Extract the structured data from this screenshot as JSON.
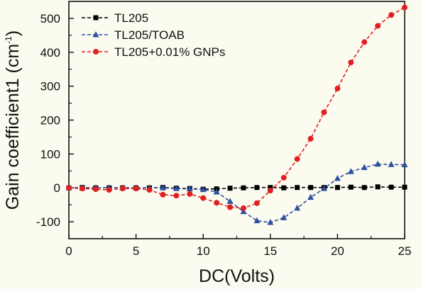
{
  "chart_data": {
    "type": "line",
    "xlabel": "DC(Volts)",
    "ylabel": {
      "main": "Gain coefficient1 (cm",
      "sup": "-1",
      "end": ")"
    },
    "xlim": [
      0,
      25
    ],
    "ylim": [
      -150,
      550
    ],
    "xticks": [
      0,
      5,
      10,
      15,
      20,
      25
    ],
    "yticks": [
      -100,
      0,
      100,
      200,
      300,
      400,
      500
    ],
    "grid": false,
    "legend_position": "top-left",
    "series": [
      {
        "name": "TL205",
        "color": "#000000",
        "marker": "square",
        "x": [
          0,
          1,
          2,
          3,
          4,
          5,
          6,
          7,
          8,
          9,
          10,
          11,
          12,
          13,
          14,
          15,
          16,
          17,
          18,
          19,
          20,
          21,
          22,
          23,
          24,
          25
        ],
        "y": [
          0,
          1,
          0,
          0,
          0,
          0,
          0,
          1,
          -1,
          -2,
          -4,
          -3,
          -1,
          0,
          1,
          1,
          0,
          1,
          1,
          1,
          1,
          2,
          1,
          3,
          2,
          2
        ]
      },
      {
        "name": "TL205/TOAB",
        "color": "#2f4fa0",
        "marker": "triangle",
        "x": [
          0,
          1,
          2,
          3,
          4,
          5,
          6,
          7,
          8,
          9,
          10,
          11,
          12,
          13,
          14,
          15,
          16,
          17,
          18,
          19,
          20,
          21,
          22,
          23,
          24,
          25
        ],
        "y": [
          0,
          0,
          0,
          0,
          0,
          0,
          0,
          0,
          -2,
          -3,
          -5,
          -12,
          -40,
          -70,
          -97,
          -102,
          -88,
          -60,
          -28,
          -2,
          28,
          48,
          60,
          70,
          69,
          68
        ]
      },
      {
        "name": "TL205+0.01% GNPs",
        "color": "#e02020",
        "marker": "circle",
        "x": [
          0,
          1,
          2,
          3,
          4,
          5,
          6,
          7,
          8,
          9,
          10,
          11,
          12,
          13,
          14,
          15,
          16,
          17,
          18,
          19,
          20,
          21,
          22,
          23,
          24,
          25
        ],
        "y": [
          0,
          -2,
          -4,
          -6,
          -2,
          -2,
          -6,
          -20,
          -23,
          -18,
          -30,
          -44,
          -57,
          -60,
          -45,
          -8,
          30,
          85,
          145,
          223,
          293,
          370,
          430,
          478,
          510,
          532
        ]
      }
    ]
  }
}
